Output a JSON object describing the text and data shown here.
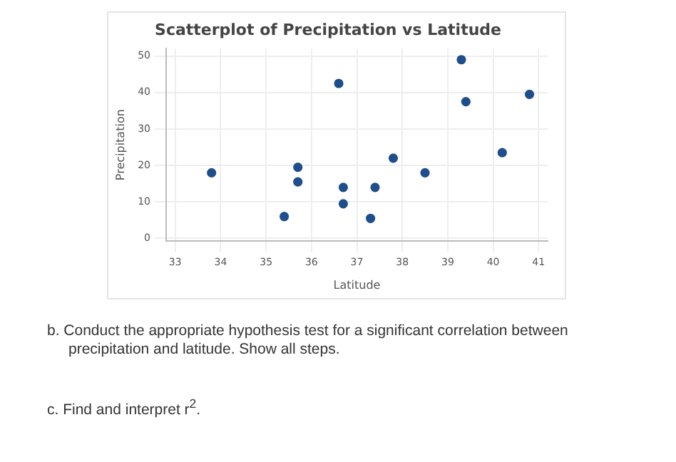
{
  "chart_data": {
    "type": "scatter",
    "title": "Scatterplot of Precipitation vs Latitude",
    "xlabel": "Latitude",
    "ylabel": "Precipitation",
    "x": [
      33.8,
      35.4,
      35.7,
      35.7,
      36.6,
      36.7,
      36.7,
      37.3,
      37.4,
      37.8,
      38.5,
      39.3,
      39.4,
      40.2,
      40.8
    ],
    "series": [
      {
        "color": "#1f4e8c",
        "values": [
          18,
          6,
          19.5,
          15.5,
          42.5,
          14,
          9.5,
          5.5,
          14,
          22,
          18,
          49,
          37.5,
          23.5,
          39.5
        ]
      }
    ],
    "xlim": [
      32.8,
      41.2
    ],
    "xticks": [
      33,
      34,
      35,
      36,
      37,
      38,
      39,
      40,
      41
    ],
    "ylim": [
      -0.7,
      52
    ],
    "yticks": [
      0,
      10,
      20,
      30,
      40,
      50
    ],
    "grid": true,
    "marker": "circle",
    "legend": false,
    "annotations": [
      "b. Conduct the appropriate hypothesis test for a significant correlation between precipitation and latitude. Show all steps.",
      "c. Find and interpret r$^{2}$."
    ]
  }
}
